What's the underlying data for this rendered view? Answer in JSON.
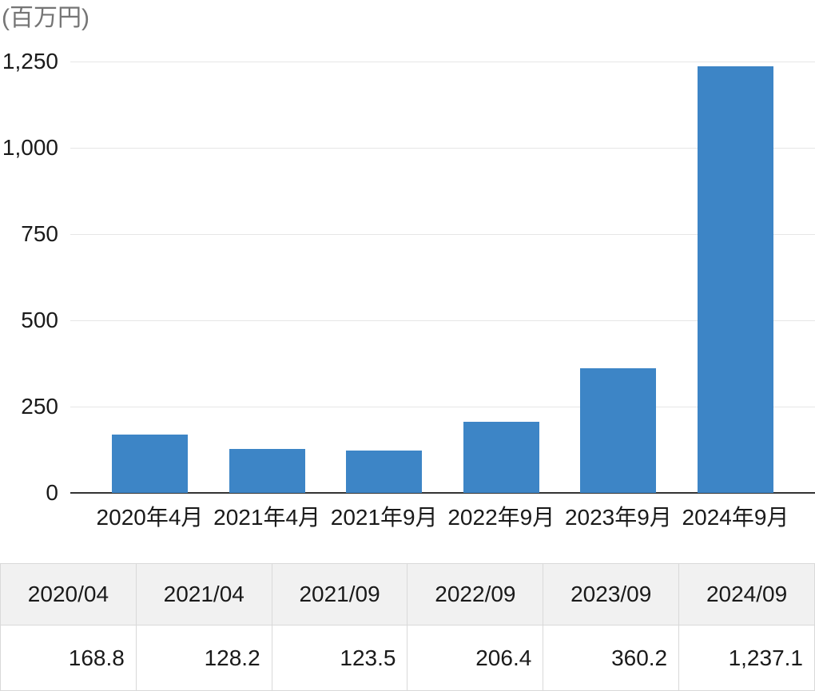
{
  "unit_label": "(百万円)",
  "chart_data": {
    "type": "bar",
    "title": "",
    "unit": "(百万円)",
    "categories": [
      "2020年4月",
      "2021年4月",
      "2021年9月",
      "2022年9月",
      "2023年9月",
      "2024年9月"
    ],
    "values": [
      168.8,
      128.2,
      123.5,
      206.4,
      360.2,
      1237.1
    ],
    "ylim": [
      0,
      1250
    ],
    "yticks": [
      0,
      250,
      500,
      750,
      1000,
      1250
    ],
    "ytick_labels": [
      "0",
      "250",
      "500",
      "750",
      "1,000",
      "1,250"
    ],
    "grid": true,
    "legend": "none"
  },
  "table": {
    "headers": [
      "2020/04",
      "2021/04",
      "2021/09",
      "2022/09",
      "2023/09",
      "2024/09"
    ],
    "values": [
      "168.8",
      "128.2",
      "123.5",
      "206.4",
      "360.2",
      "1,237.1"
    ]
  },
  "colors": {
    "bar": "#3d85c6",
    "gridline": "#e6e6e6",
    "axis_line": "#333333",
    "unit_text": "#757575",
    "text": "#1a1a1a",
    "table_header_bg": "#f1f1f1",
    "table_border": "#d9d9d9"
  }
}
